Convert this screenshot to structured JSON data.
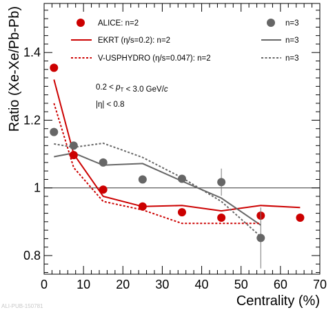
{
  "watermark": "ALI-PUB-150781",
  "chart_data": {
    "type": "scatter",
    "xlabel": "Centrality (%)",
    "ylabel": "Ratio (Xe-Xe/Pb-Pb)",
    "xlim": [
      0,
      70
    ],
    "ylim": [
      0.745,
      1.545
    ],
    "x_ticks": [
      0,
      10,
      20,
      30,
      40,
      50,
      60,
      70
    ],
    "y_ticks": [
      0.8,
      1.0,
      1.2,
      1.4
    ],
    "y_tick_labels": [
      "0.8",
      "1",
      "1.2",
      "1.4"
    ],
    "reference_line_y": 1.0,
    "legend": {
      "placement": "top",
      "rows": [
        {
          "label": "ALICE: n=2",
          "label_n3": "n=3"
        },
        {
          "label": "EKRT (η/s=0.2): n=2",
          "label_n3": "n=3"
        },
        {
          "label": "V-USPHYDRO (η/s=0.047): n=2",
          "label_n3": "n=3"
        }
      ]
    },
    "annotations": [
      "0.2 < p_T < 3.0 GeV/c",
      "|η| < 0.8"
    ],
    "colors": {
      "n2": "#cc0000",
      "n3": "#666666"
    },
    "series": [
      {
        "name": "ALICE: n=2",
        "kind": "points",
        "color": "#cc0000",
        "x": [
          2.5,
          7.5,
          15,
          25,
          35,
          45,
          55,
          65
        ],
        "y": [
          1.355,
          1.097,
          0.995,
          0.945,
          0.928,
          0.912,
          0.918,
          0.912
        ]
      },
      {
        "name": "ALICE: n=3",
        "kind": "points",
        "color": "#666666",
        "x": [
          2.5,
          7.5,
          15,
          25,
          35,
          45,
          55
        ],
        "y": [
          1.165,
          1.125,
          1.075,
          1.025,
          1.027,
          1.017,
          0.852
        ],
        "err": [
          0,
          0,
          0,
          0,
          0,
          0.04,
          0.09
        ]
      },
      {
        "name": "EKRT (η/s=0.2): n=2",
        "kind": "line",
        "dash": "solid",
        "color": "#cc0000",
        "x": [
          2.5,
          7.5,
          15,
          25,
          35,
          45,
          55,
          65
        ],
        "y": [
          1.32,
          1.1,
          0.975,
          0.945,
          0.948,
          0.932,
          0.948,
          0.942
        ]
      },
      {
        "name": "EKRT (η/s=0.2): n=3",
        "kind": "line",
        "dash": "solid",
        "color": "#666666",
        "x": [
          2.5,
          7.5,
          15,
          25,
          35,
          45,
          55
        ],
        "y": [
          1.092,
          1.103,
          1.067,
          1.072,
          1.02,
          0.97,
          0.89
        ]
      },
      {
        "name": "V-USPHYDRO (η/s=0.047): n=2",
        "kind": "line",
        "dash": "dashed",
        "color": "#cc0000",
        "x": [
          2.5,
          7.5,
          15,
          25,
          35,
          45,
          55
        ],
        "y": [
          1.25,
          1.06,
          0.96,
          0.935,
          0.895,
          0.895,
          0.895
        ]
      },
      {
        "name": "V-USPHYDRO (η/s=0.047): n=3",
        "kind": "line",
        "dash": "dashed",
        "color": "#666666",
        "x": [
          2.5,
          7.5,
          15,
          25,
          35,
          45,
          55
        ],
        "y": [
          1.13,
          1.12,
          1.132,
          1.09,
          1.03,
          0.96,
          0.856
        ]
      }
    ]
  }
}
